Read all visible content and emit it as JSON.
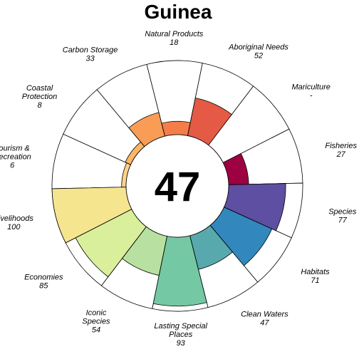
{
  "chart_data": {
    "type": "flower",
    "title": "Guinea",
    "center_value": "47",
    "max_value": 100,
    "petals": [
      {
        "name_lines": [
          "Fisheries"
        ],
        "value": 27,
        "value_label": "27",
        "color": "#9e0142"
      },
      {
        "name_lines": [
          "Species"
        ],
        "value": 77,
        "value_label": "77",
        "color": "#5e4fa2"
      },
      {
        "name_lines": [
          "Habitats"
        ],
        "value": 71,
        "value_label": "71",
        "color": "#3288bd"
      },
      {
        "name_lines": [
          "Clean Waters"
        ],
        "value": 47,
        "value_label": "47",
        "color": "#58a9ad"
      },
      {
        "name_lines": [
          "Lasting Special",
          "Places"
        ],
        "value": 93,
        "value_label": "93",
        "color": "#74c8a3"
      },
      {
        "name_lines": [
          "Iconic",
          "Species"
        ],
        "value": 54,
        "value_label": "54",
        "color": "#b8e1a1"
      },
      {
        "name_lines": [
          "Economies"
        ],
        "value": 85,
        "value_label": "85",
        "color": "#d9ef9b"
      },
      {
        "name_lines": [
          "Livelihoods"
        ],
        "value": 100,
        "value_label": "100",
        "color": "#f6e58f"
      },
      {
        "name_lines": [
          "Tourism &",
          "Recreation"
        ],
        "value": 6,
        "value_label": "6",
        "color": "#fdd385"
      },
      {
        "name_lines": [
          "Coastal",
          "Protection"
        ],
        "value": 8,
        "value_label": "8",
        "color": "#fdb566"
      },
      {
        "name_lines": [
          "Carbon Storage"
        ],
        "value": 33,
        "value_label": "33",
        "color": "#f99c56"
      },
      {
        "name_lines": [
          "Natural Products"
        ],
        "value": 18,
        "value_label": "18",
        "color": "#f57d4a"
      },
      {
        "name_lines": [
          "Aboriginal Needs"
        ],
        "value": 52,
        "value_label": "52",
        "color": "#e45a44"
      },
      {
        "name_lines": [
          "Mariculture"
        ],
        "value": null,
        "value_label": "-",
        "color": "#d53e4f"
      }
    ]
  }
}
